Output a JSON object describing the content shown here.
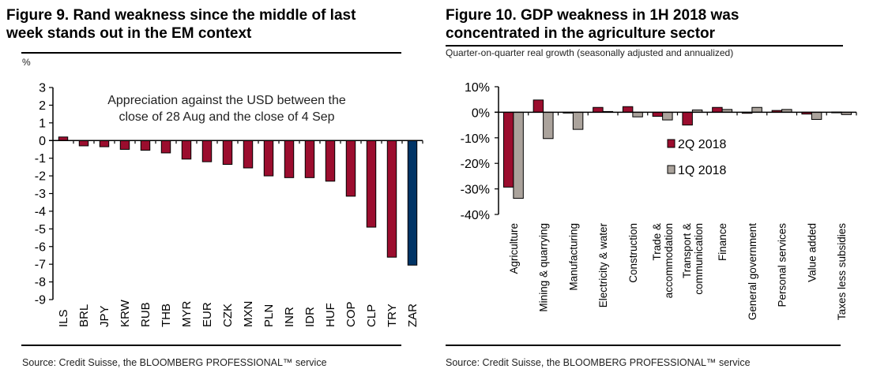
{
  "chart_data": [
    {
      "type": "bar",
      "title": "Figure 9. Rand weakness since the middle of last week stands out in the EM context",
      "title_lines": [
        "Figure 9. Rand weakness since the middle of last",
        "week stands out in the EM context"
      ],
      "unit_label": "%",
      "annotation_lines": [
        "Appreciation against the USD between the",
        "close of 28 Aug and the close of 4 Sep"
      ],
      "xlabel": "",
      "ylabel": "%",
      "ylim": [
        -9,
        3
      ],
      "yticks": [
        3,
        2,
        1,
        0,
        -1,
        -2,
        -3,
        -4,
        -5,
        -6,
        -7,
        -8,
        -9
      ],
      "categories": [
        "ILS",
        "BRL",
        "JPY",
        "KRW",
        "RUB",
        "THB",
        "MYR",
        "EUR",
        "CZK",
        "MXN",
        "PLN",
        "INR",
        "IDR",
        "HUF",
        "COP",
        "CLP",
        "TRY",
        "ZAR"
      ],
      "values": [
        0.2,
        -0.3,
        -0.35,
        -0.5,
        -0.55,
        -0.7,
        -1.05,
        -1.2,
        -1.35,
        -1.55,
        -2.0,
        -2.1,
        -2.1,
        -2.3,
        -3.15,
        -4.9,
        -6.6,
        -7.05
      ],
      "highlight": "ZAR",
      "colors": {
        "default": "#9b0d2e",
        "highlight": "#003466"
      },
      "grid": false,
      "legend": "none",
      "source": "Source: Credit Suisse, the BLOOMBERG PROFESSIONAL™ service"
    },
    {
      "type": "bar",
      "title": "Figure 10. GDP weakness in 1H 2018 was concentrated in the agriculture sector",
      "title_lines": [
        "Figure 10. GDP weakness in 1H 2018 was",
        "concentrated in the agriculture sector"
      ],
      "subtitle": "Quarter-on-quarter real growth (seasonally adjusted and annualized)",
      "xlabel": "",
      "ylabel": "",
      "ylim": [
        -40,
        10
      ],
      "yticks": [
        10,
        0,
        -10,
        -20,
        -30,
        -40
      ],
      "ytick_labels": [
        "10%",
        "0%",
        "-10%",
        "-20%",
        "-30%",
        "-40%"
      ],
      "categories": [
        "Agriculture",
        "Mining & quarrying",
        "Manufacturing",
        "Electricity & water",
        "Construction",
        "Trade & accommodation",
        "Transport & communication",
        "Finance",
        "General government",
        "Personal services",
        "Value added",
        "Taxes less subsidies"
      ],
      "category_lines": [
        [
          "Agriculture"
        ],
        [
          "Mining & quarrying"
        ],
        [
          "Manufacturing"
        ],
        [
          "Electricity & water"
        ],
        [
          "Construction"
        ],
        [
          "Trade &",
          "accommodation"
        ],
        [
          "Transport &",
          "communication"
        ],
        [
          "Finance"
        ],
        [
          "General government"
        ],
        [
          "Personal services"
        ],
        [
          "Value added"
        ],
        [
          "Taxes less subsidies"
        ]
      ],
      "series": [
        {
          "name": "2Q 2018",
          "color": "#9b0d2e",
          "values": [
            -29.3,
            4.8,
            -0.3,
            1.9,
            2.2,
            -1.6,
            -5.0,
            1.9,
            -0.4,
            0.7,
            -0.7,
            0.1
          ]
        },
        {
          "name": "1Q 2018",
          "color": "#aba39c",
          "values": [
            -33.7,
            -10.3,
            -6.7,
            0.3,
            -1.8,
            -3.0,
            0.9,
            1.1,
            1.9,
            1.1,
            -2.8,
            -0.9
          ]
        }
      ],
      "grid": false,
      "legend": "center",
      "source": "Source: Credit Suisse, the BLOOMBERG PROFESSIONAL™ service"
    }
  ]
}
